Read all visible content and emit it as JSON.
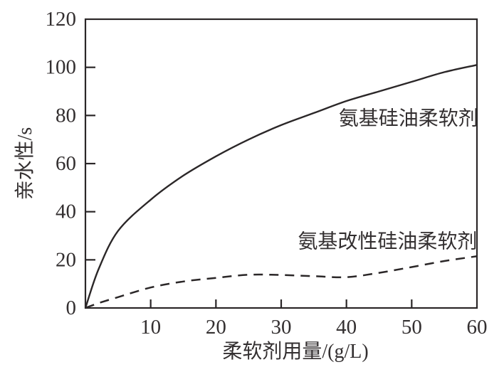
{
  "figure": {
    "background": "#ffffff",
    "line_color": "#2b2728",
    "text_color": "#332f30"
  },
  "chart_data": {
    "type": "line",
    "title": "",
    "xlabel": "柔软剂用量/(g/L)",
    "ylabel": "亲水性/s",
    "xlim": [
      0,
      60
    ],
    "ylim": [
      0,
      120
    ],
    "x_ticks": [
      10,
      20,
      30,
      40,
      50,
      60
    ],
    "y_ticks": [
      0,
      20,
      40,
      60,
      80,
      100,
      120
    ],
    "grid": false,
    "legend_position": "inline-annotations",
    "x": [
      0,
      2,
      5,
      10,
      15,
      20,
      25,
      30,
      35,
      40,
      45,
      50,
      55,
      60
    ],
    "series": [
      {
        "name": "氨基硅油柔软剂",
        "style": "solid",
        "values": [
          0,
          16,
          32,
          45,
          55,
          63,
          70,
          76,
          81,
          86,
          90,
          94,
          98,
          101
        ]
      },
      {
        "name": "氨基改性硅油柔软剂",
        "style": "dashed",
        "values": [
          0,
          2,
          4.5,
          8.5,
          11,
          12.5,
          13.8,
          13.7,
          13.2,
          12.8,
          14.6,
          17,
          19.5,
          21.5
        ]
      }
    ],
    "annotations": [
      {
        "text": "氨基硅油柔软剂",
        "x": 49.5,
        "y": 79,
        "anchor": "middle",
        "series": "solid"
      },
      {
        "text": "氨基改性硅油柔软剂",
        "x": 46.3,
        "y": 28,
        "anchor": "middle",
        "series": "dashed"
      }
    ]
  }
}
